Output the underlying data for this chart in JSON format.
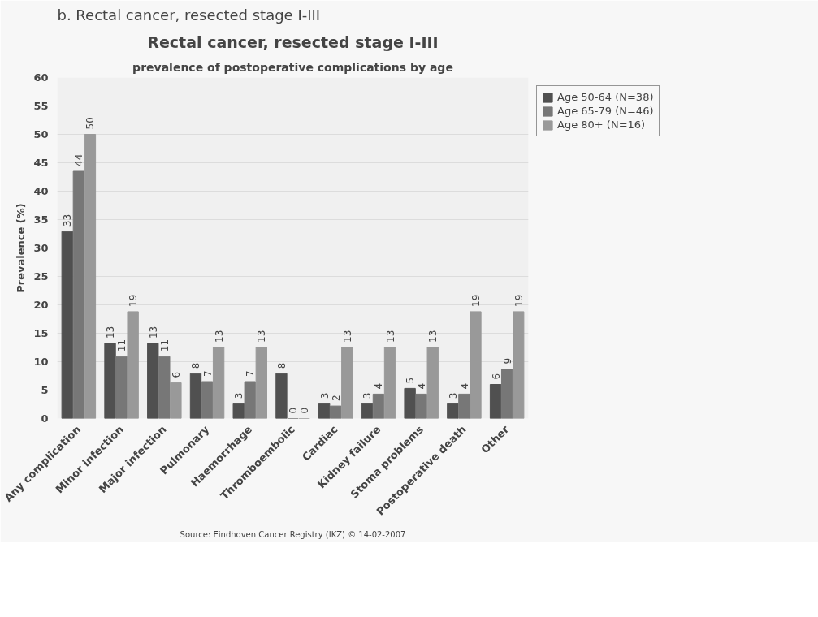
{
  "chart_data": {
    "type": "bar",
    "title": "Rectal cancer, resected stage I-III",
    "subtitle": "prevalence of postoperative complications by age",
    "ylabel": "Prevalence (%)",
    "categories": [
      "Any complication",
      "Minor infection",
      "Major infection",
      "Pulmonary",
      "Haemorrhage",
      "Thromboembolic",
      "Cardiac",
      "Kidney failure",
      "Stoma problems",
      "Postoperative death",
      "Other"
    ],
    "series": [
      {
        "name": "Age 50-64 (N=38)",
        "color": "#505050",
        "values": [
          32.9,
          13.2,
          13.2,
          7.9,
          2.6,
          7.9,
          2.6,
          2.6,
          5.3,
          2.6,
          6.0
        ],
        "value_labels": [
          "33",
          "13",
          "13",
          "8",
          "3",
          "8",
          "3",
          "3",
          "5",
          "3",
          "6"
        ]
      },
      {
        "name": "Age 65-79 (N=46)",
        "color": "#777777",
        "values": [
          43.5,
          10.9,
          10.9,
          6.5,
          6.5,
          0,
          2.2,
          4.3,
          4.3,
          4.3,
          8.7
        ],
        "value_labels": [
          "44",
          "11",
          "11",
          "7",
          "7",
          "0",
          "2",
          "4",
          "4",
          "4",
          "9"
        ]
      },
      {
        "name": "Age 80+ (N=16)",
        "color": "#999999",
        "values": [
          50,
          18.8,
          6.3,
          12.5,
          12.5,
          0,
          12.5,
          12.5,
          12.5,
          18.8,
          18.8
        ],
        "value_labels": [
          "50",
          "19",
          "6",
          "13",
          "13",
          "0",
          "13",
          "13",
          "13",
          "19",
          "19"
        ]
      }
    ],
    "ylim": [
      0,
      60
    ],
    "yticks": [
      0,
      5,
      10,
      15,
      20,
      25,
      30,
      35,
      40,
      45,
      50,
      55,
      60
    ],
    "grid": "y",
    "legend": "top right",
    "annotations": [
      "b. Rectal cancer, resected stage I-III",
      "Source: Eindhoven Cancer Registry (IKZ) © 14-02-2007"
    ]
  }
}
